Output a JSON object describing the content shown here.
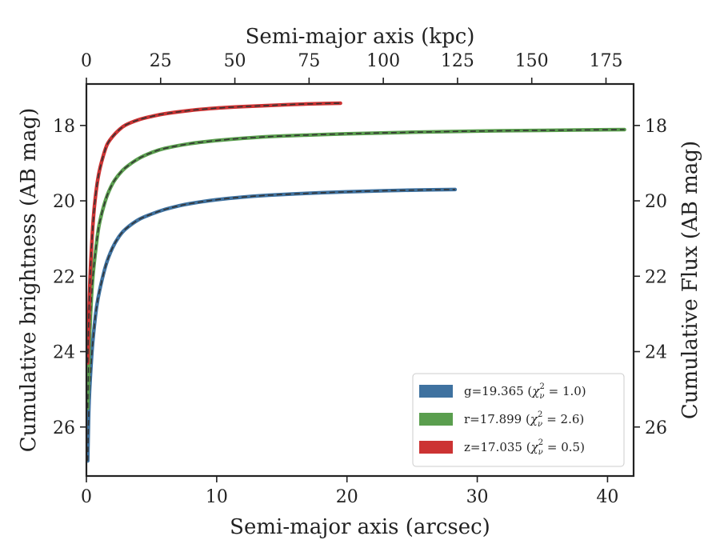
{
  "chart_data": {
    "type": "line",
    "xlabel": "Semi-major axis (arcsec)",
    "ylabel": "Cumulative brightness (AB mag)",
    "top_xlabel": "Semi-major axis (kpc)",
    "right_ylabel": "Cumulative Flux (AB mag)",
    "xlim": [
      0,
      42
    ],
    "ylim": [
      27.3,
      16.9
    ],
    "top_xlim": [
      0,
      184.3
    ],
    "y_inverted": true,
    "grid": false,
    "legend_position": "lower-right",
    "x_ticks": [
      "0",
      "10",
      "20",
      "30",
      "40"
    ],
    "y_ticks": [
      "18",
      "20",
      "22",
      "24",
      "26"
    ],
    "y_tick_values": [
      18,
      20,
      22,
      24,
      26
    ],
    "top_x_ticks": [
      "0",
      "25",
      "50",
      "75",
      "100",
      "125",
      "150",
      "175"
    ],
    "top_x_tick_values": [
      0,
      25,
      50,
      75,
      100,
      125,
      150,
      175
    ],
    "series": [
      {
        "name": "g=19.365",
        "legend_chi": "χ",
        "legend_chi_sub": "ν",
        "legend_chi_sup": "2",
        "legend_chi_value": " = 1.0)",
        "color": "#3f72a0",
        "x": [
          0.1,
          0.2,
          0.35,
          0.5,
          0.75,
          1.0,
          1.5,
          2.0,
          2.5,
          3.0,
          4.0,
          5.0,
          6.0,
          7.0,
          8.0,
          10.0,
          12.0,
          14.0,
          17.0,
          20.0,
          23.0,
          26.0,
          28.3
        ],
        "y": [
          26.9,
          25.4,
          24.4,
          23.7,
          22.9,
          22.4,
          21.7,
          21.25,
          20.95,
          20.75,
          20.5,
          20.35,
          20.23,
          20.14,
          20.07,
          19.97,
          19.9,
          19.85,
          19.8,
          19.76,
          19.73,
          19.71,
          19.7
        ]
      },
      {
        "name": "r=17.899",
        "legend_chi": "χ",
        "legend_chi_sub": "ν",
        "legend_chi_sup": "2",
        "legend_chi_value": " = 2.6)",
        "color": "#5a9e4e",
        "x": [
          0.1,
          0.2,
          0.35,
          0.5,
          0.75,
          1.0,
          1.5,
          2.0,
          2.5,
          3.0,
          4.0,
          5.0,
          6.0,
          8.0,
          10.0,
          12.0,
          15.0,
          20.0,
          25.0,
          30.0,
          35.0,
          41.3
        ],
        "y": [
          25.5,
          24.0,
          22.8,
          22.0,
          21.2,
          20.6,
          19.95,
          19.55,
          19.3,
          19.12,
          18.88,
          18.72,
          18.61,
          18.48,
          18.4,
          18.34,
          18.28,
          18.22,
          18.18,
          18.15,
          18.13,
          18.11
        ]
      },
      {
        "name": "z=17.035",
        "legend_chi": "χ",
        "legend_chi_sub": "ν",
        "legend_chi_sup": "2",
        "legend_chi_value": " = 0.5)",
        "color": "#cc3333",
        "x": [
          0.1,
          0.2,
          0.3,
          0.45,
          0.6,
          0.8,
          1.0,
          1.3,
          1.6,
          2.0,
          2.5,
          3.0,
          4.0,
          5.0,
          6.0,
          8.0,
          10.0,
          12.0,
          14.0,
          16.0,
          18.0,
          19.5
        ],
        "y": [
          24.3,
          22.9,
          21.9,
          20.9,
          20.2,
          19.6,
          19.2,
          18.8,
          18.5,
          18.3,
          18.12,
          17.99,
          17.85,
          17.76,
          17.69,
          17.6,
          17.54,
          17.5,
          17.47,
          17.44,
          17.42,
          17.41
        ]
      }
    ]
  }
}
